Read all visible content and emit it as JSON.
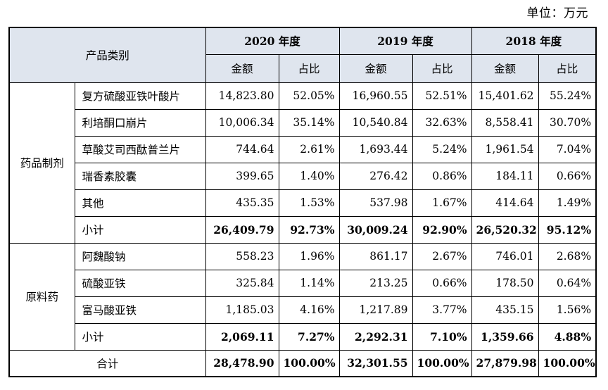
{
  "unit_label": "单位：万元",
  "header": {
    "category": "产品类别",
    "years": [
      "2020 年度",
      "2019 年度",
      "2018 年度"
    ],
    "amount": "金额",
    "ratio": "占比"
  },
  "groups": [
    {
      "name": "药品制剂",
      "rows": [
        {
          "label": "复方硫酸亚铁叶酸片",
          "v": [
            "14,823.80",
            "52.05%",
            "16,960.55",
            "52.51%",
            "15,401.62",
            "55.24%"
          ]
        },
        {
          "label": "利培酮口崩片",
          "v": [
            "10,006.34",
            "35.14%",
            "10,540.84",
            "32.63%",
            "8,558.41",
            "30.70%"
          ]
        },
        {
          "label": "草酸艾司西酞普兰片",
          "v": [
            "744.64",
            "2.61%",
            "1,693.44",
            "5.24%",
            "1,961.54",
            "7.04%"
          ]
        },
        {
          "label": "瑞香素胶囊",
          "v": [
            "399.65",
            "1.40%",
            "276.42",
            "0.86%",
            "184.11",
            "0.66%"
          ]
        },
        {
          "label": "其他",
          "v": [
            "435.35",
            "1.53%",
            "537.98",
            "1.67%",
            "414.64",
            "1.49%"
          ]
        }
      ],
      "subtotal": {
        "label": "小计",
        "v": [
          "26,409.79",
          "92.73%",
          "30,009.24",
          "92.90%",
          "26,520.32",
          "95.12%"
        ]
      }
    },
    {
      "name": "原料药",
      "rows": [
        {
          "label": "阿魏酸钠",
          "v": [
            "558.23",
            "1.96%",
            "861.17",
            "2.67%",
            "746.01",
            "2.68%"
          ]
        },
        {
          "label": "硫酸亚铁",
          "v": [
            "325.84",
            "1.14%",
            "213.25",
            "0.66%",
            "178.50",
            "0.64%"
          ]
        },
        {
          "label": "富马酸亚铁",
          "v": [
            "1,185.03",
            "4.16%",
            "1,217.89",
            "3.77%",
            "435.15",
            "1.56%"
          ]
        }
      ],
      "subtotal": {
        "label": "小计",
        "v": [
          "2,069.11",
          "7.27%",
          "2,292.31",
          "7.10%",
          "1,359.66",
          "4.88%"
        ]
      }
    }
  ],
  "total": {
    "label": "合计",
    "v": [
      "28,478.90",
      "100.00%",
      "32,301.55",
      "100.00%",
      "27,879.98",
      "100.00%"
    ]
  }
}
